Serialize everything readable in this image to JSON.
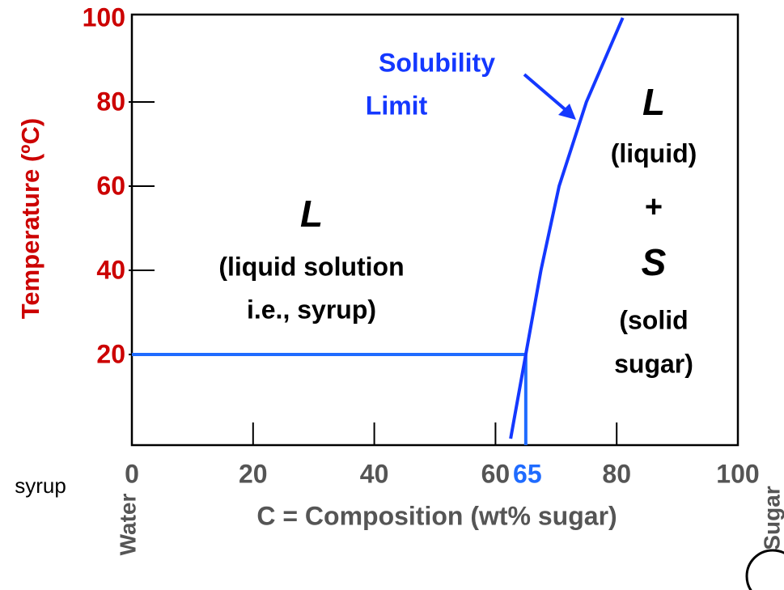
{
  "chart_data": {
    "type": "line",
    "x_label": "C = Composition (wt% sugar)",
    "y_label": "Temperature (ºC)",
    "xlim": [
      0,
      100
    ],
    "ylim": [
      0,
      100
    ],
    "xticks": [
      0,
      20,
      40,
      60,
      80,
      100
    ],
    "yticks": [
      20,
      40,
      60,
      80,
      100
    ],
    "grid": false,
    "series": [
      {
        "color": "#1438ff",
        "x": [
          62.5,
          65,
          67.5,
          70.5,
          75,
          81
        ],
        "values": [
          0,
          20,
          40,
          60,
          80,
          100
        ]
      }
    ],
    "reference_point": {
      "x": 65,
      "y": 20,
      "label": "65",
      "color": "#1f6bff"
    },
    "annotations": [
      "Solubility",
      "Limit",
      "L",
      "(liquid solution",
      "i.e., syrup)",
      "L",
      "(liquid)",
      "+",
      "S",
      "(solid",
      "sugar)",
      "syrup",
      "Water",
      "Sugar"
    ]
  }
}
